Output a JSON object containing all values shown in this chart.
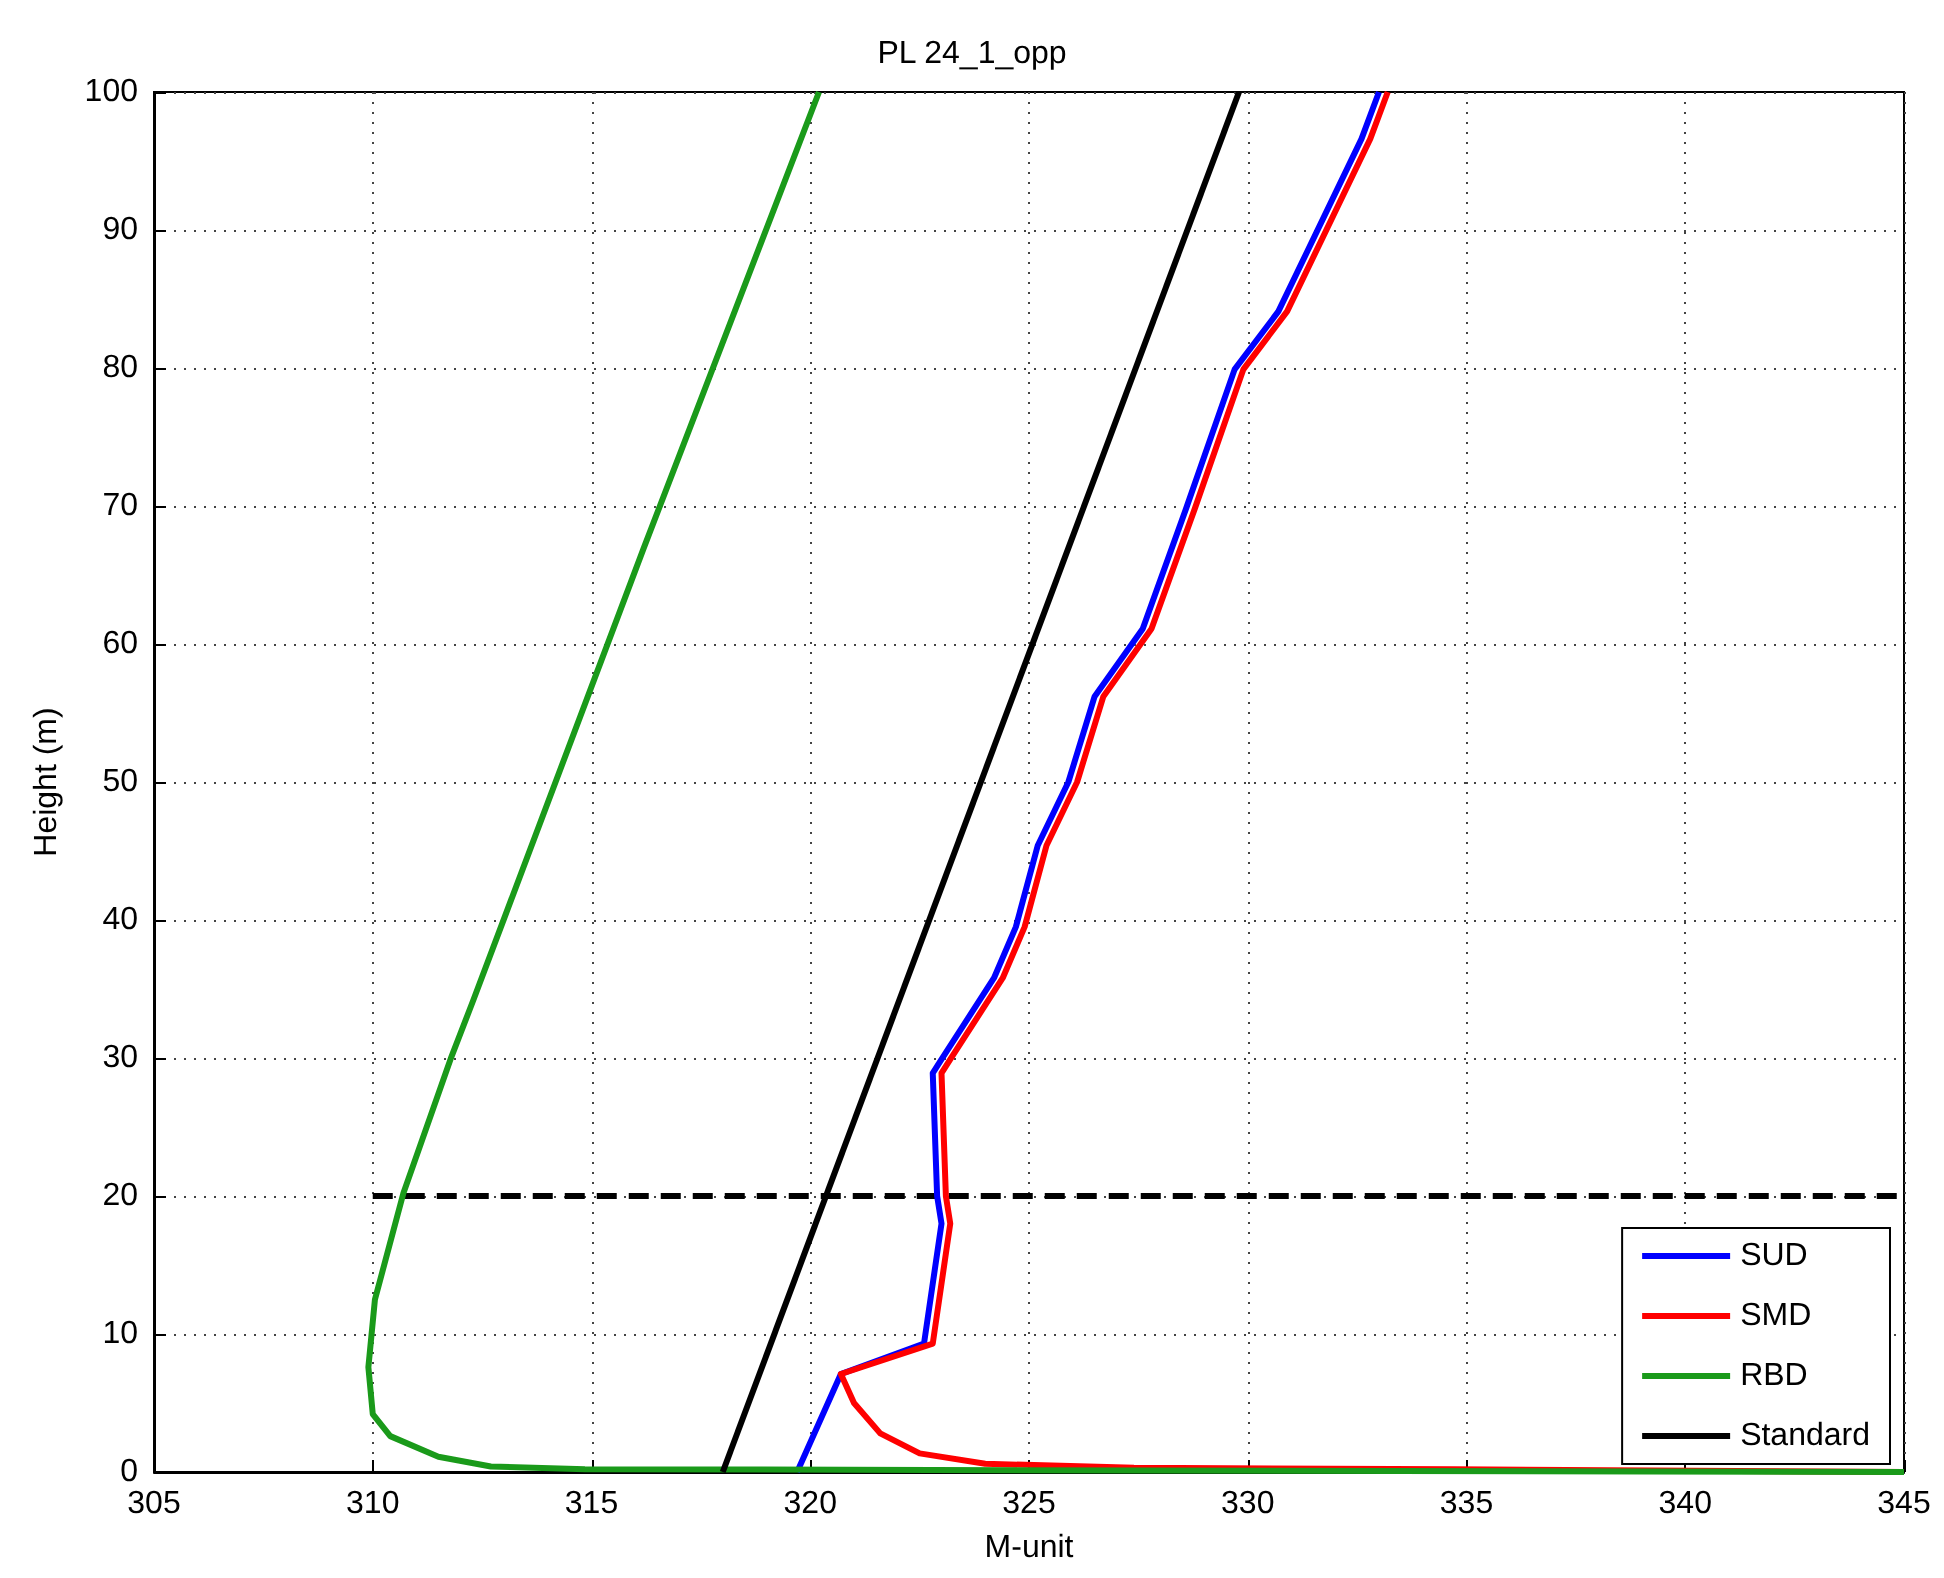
{
  "chart_data": {
    "type": "line",
    "title": "PL 24_1_opp",
    "xlabel": "M-unit",
    "ylabel": "Height (m)",
    "xlim": [
      305,
      345
    ],
    "xticks": [
      305,
      310,
      315,
      320,
      325,
      330,
      335,
      340,
      345
    ],
    "ylim": [
      0,
      100
    ],
    "yticks": [
      0,
      10,
      20,
      30,
      40,
      50,
      60,
      70,
      80,
      90,
      100
    ],
    "grid": true,
    "legend": "bottom right",
    "marker": "none",
    "line_style": "solid",
    "series": [
      {
        "name": "SUD",
        "color": "#0000ff",
        "x": [
          319.7,
          320.7,
          322.6,
          323.0,
          322.9,
          322.8,
          323.0,
          324.2,
          324.7,
          325.2,
          325.9,
          326.5,
          327.6,
          328.6,
          329.7,
          330.7,
          332.6,
          333.0
        ],
        "values": [
          0,
          7.1,
          9.3,
          18,
          20,
          28.9,
          29.9,
          35.8,
          39.5,
          45.4,
          50,
          56.2,
          61.1,
          69.9,
          79.9,
          84.1,
          96.6,
          100
        ]
      },
      {
        "name": "SMD",
        "color": "#ff0000",
        "x": [
          345,
          334.7,
          327.4,
          324.0,
          322.5,
          321.6,
          321.0,
          320.7,
          322.8,
          323.2,
          323.1,
          323.0,
          323.2,
          324.4,
          324.9,
          325.4,
          326.1,
          326.7,
          327.8,
          328.8,
          329.9,
          330.9,
          332.8,
          333.2
        ],
        "values": [
          0,
          0.2,
          0.3,
          0.6,
          1.35,
          2.8,
          5,
          7.1,
          9.3,
          18,
          20,
          28.9,
          29.9,
          35.8,
          39.5,
          45.4,
          50,
          56.2,
          61.1,
          69.9,
          79.9,
          84.1,
          96.6,
          100
        ]
      },
      {
        "name": "RBD",
        "color": "#1a9a1a",
        "x": [
          345,
          314.85,
          312.7,
          311.5,
          310.4,
          310.0,
          309.9,
          310.05,
          310.7,
          311.8,
          312.3,
          316.2,
          320.2
        ],
        "values": [
          0,
          0.2,
          0.4,
          1.1,
          2.6,
          4.2,
          7.6,
          12.5,
          20.2,
          30.1,
          34.2,
          67,
          100
        ]
      },
      {
        "name": "Standard",
        "color": "#000000",
        "x": [
          318.0,
          329.8
        ],
        "values": [
          0,
          100
        ]
      },
      {
        "color": "#000000",
        "x": [
          310,
          345
        ],
        "values": [
          20,
          20
        ],
        "line_style": "dashed"
      }
    ]
  }
}
